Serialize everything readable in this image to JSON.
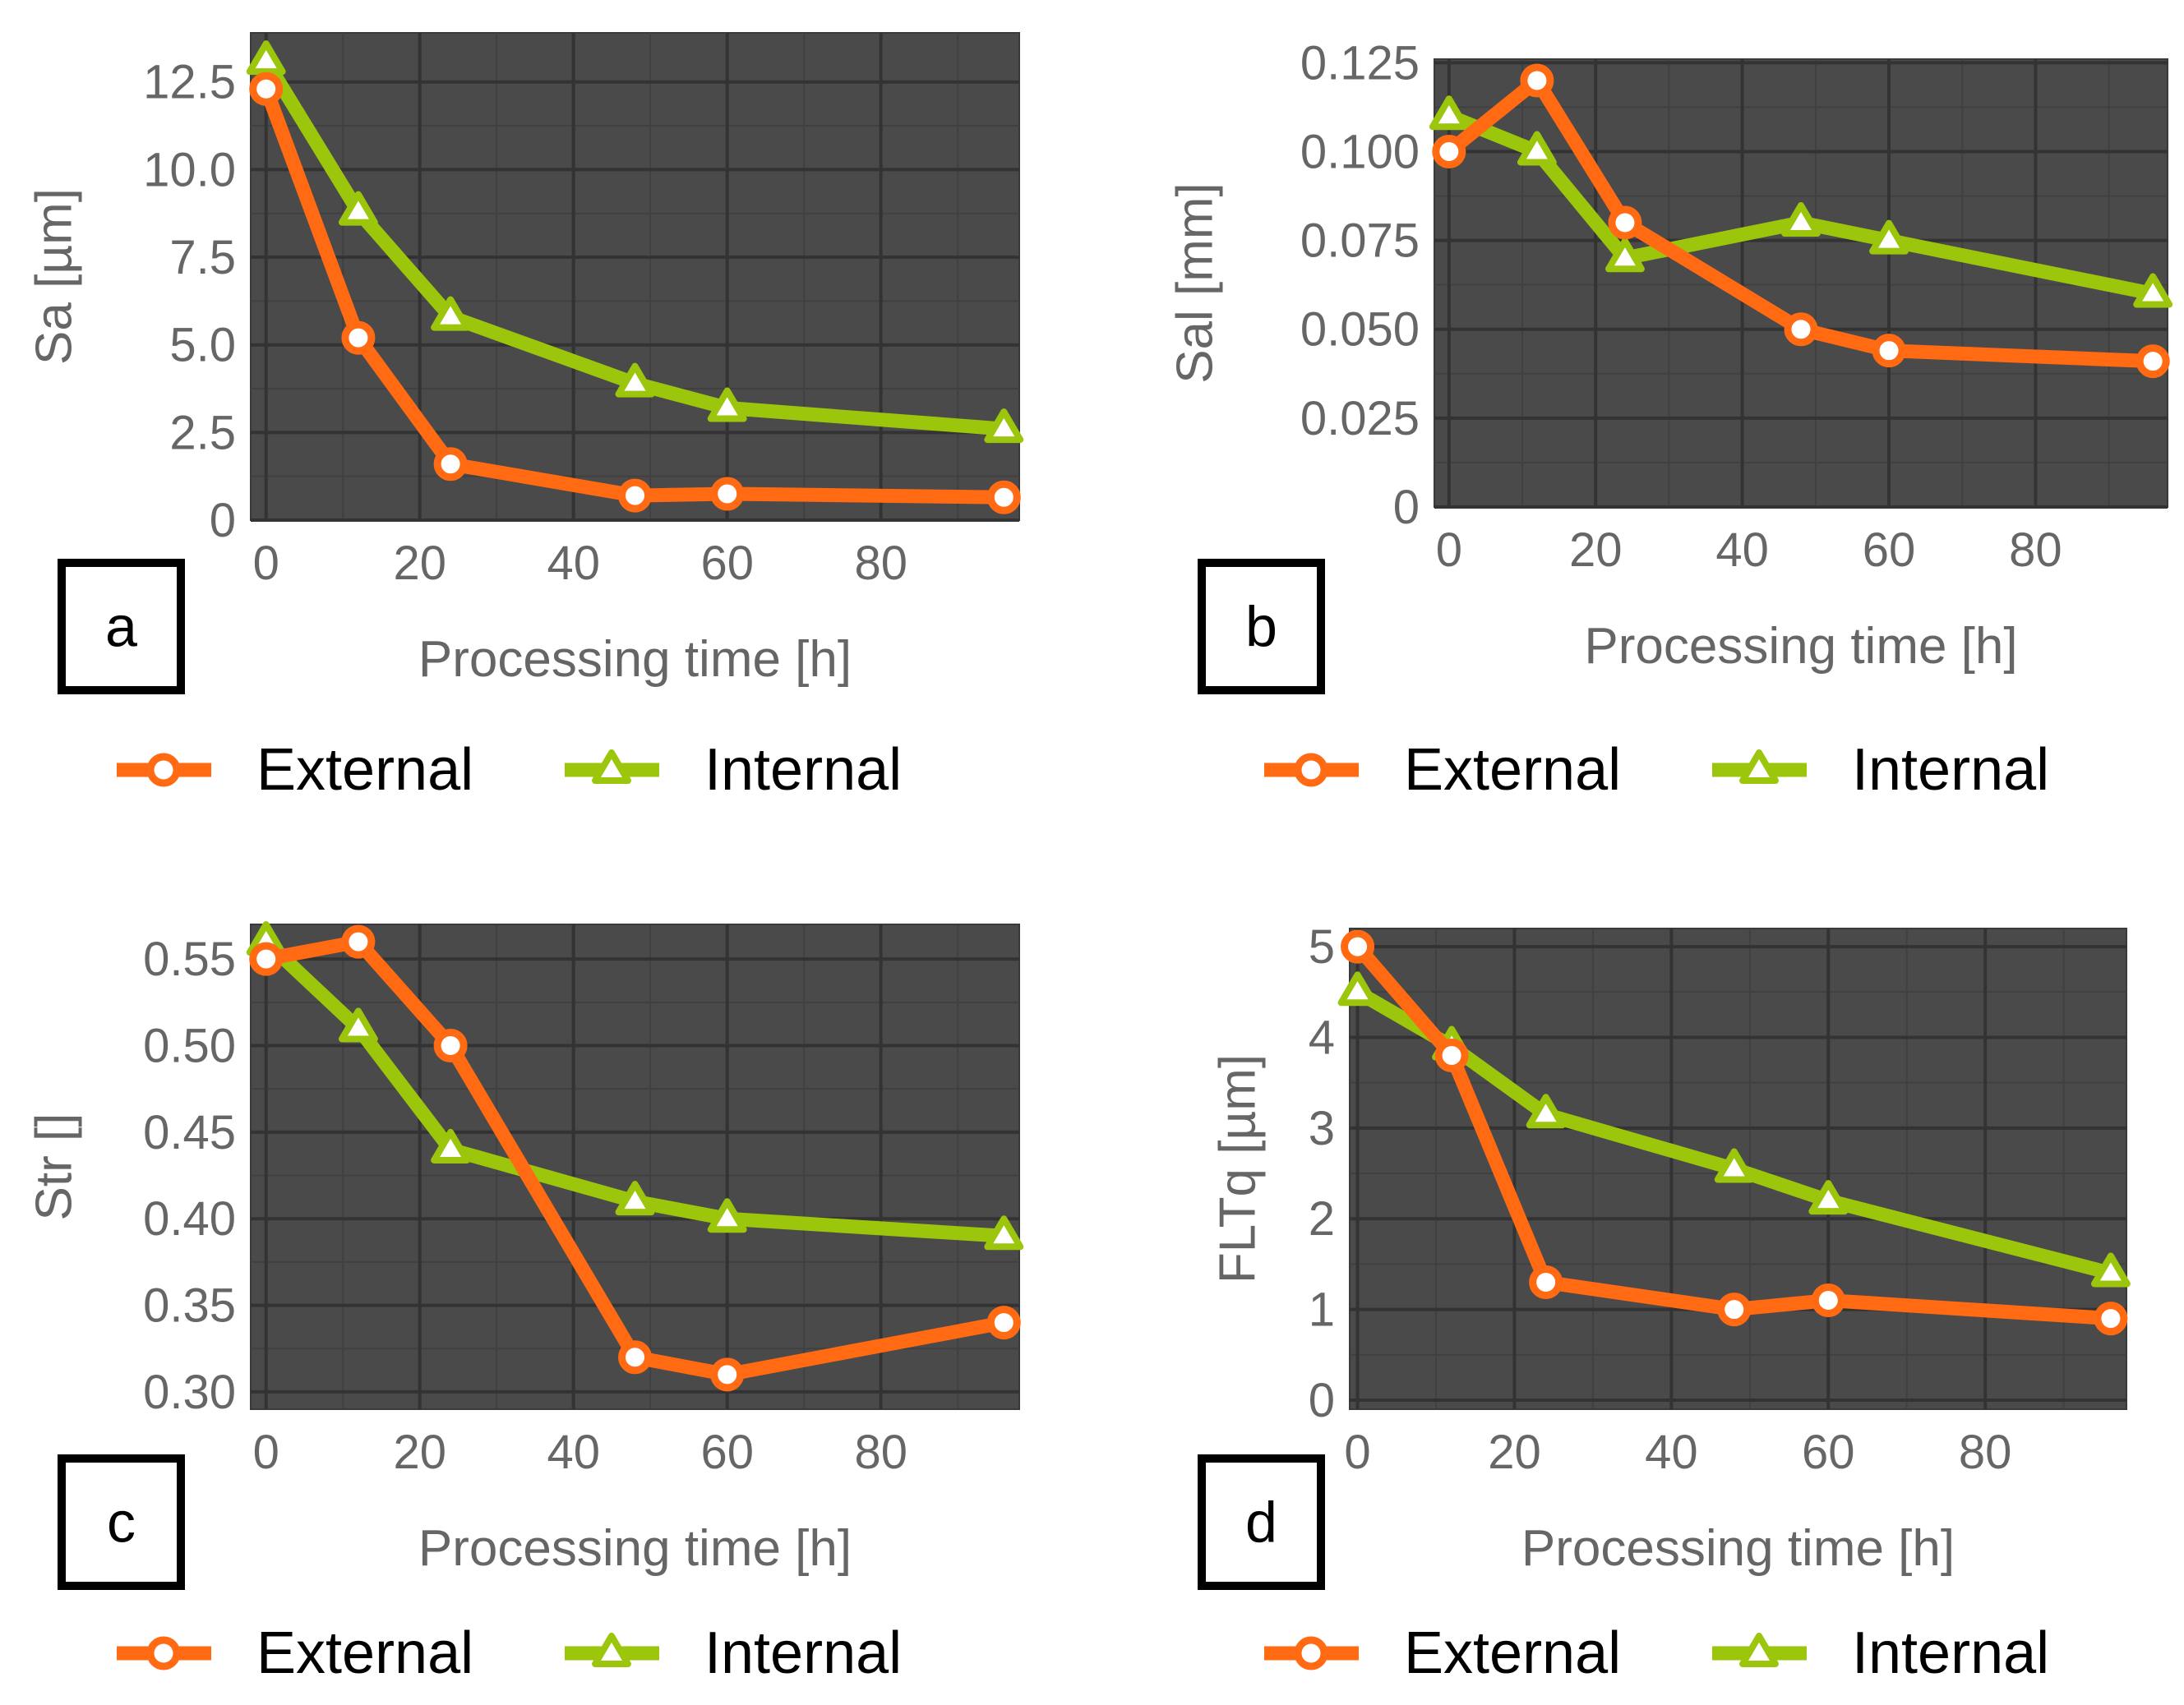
{
  "styles": {
    "plot_background": "#4a4a4a",
    "grid_color": "#333333",
    "text_color": "#666666",
    "legend_text_color": "#000000",
    "external_color": "#ff6a13",
    "internal_color": "#9cc60b"
  },
  "chart_data": [
    {
      "id": "a",
      "type": "line",
      "panel_label": "a",
      "xlabel": "Processing time [h]",
      "ylabel": "Sa [µm]",
      "xlim": [
        -2,
        98
      ],
      "ylim": [
        0,
        13.9
      ],
      "xticks": [
        0,
        20,
        40,
        60,
        80
      ],
      "xtick_labels": [
        "0",
        "20",
        "40",
        "60",
        "80"
      ],
      "yticks": [
        0,
        2.5,
        5.0,
        7.5,
        10.0,
        12.5
      ],
      "ytick_labels": [
        "0",
        "2.5",
        "5.0",
        "7.5",
        "10.0",
        "12.5"
      ],
      "x": [
        0,
        12,
        24,
        48,
        60,
        96
      ],
      "series": [
        {
          "name": "External",
          "marker": "circle",
          "values": [
            12.3,
            5.2,
            1.6,
            0.7,
            0.75,
            0.65
          ]
        },
        {
          "name": "Internal",
          "marker": "triangle",
          "values": [
            13.1,
            8.8,
            5.8,
            3.9,
            3.2,
            2.6
          ]
        }
      ],
      "legend": [
        "External",
        "Internal"
      ]
    },
    {
      "id": "b",
      "type": "line",
      "panel_label": "b",
      "xlabel": "Processing time [h]",
      "ylabel": "Sal [mm]",
      "xlim": [
        -2,
        98
      ],
      "ylim": [
        0,
        0.126
      ],
      "xticks": [
        0,
        20,
        40,
        60,
        80
      ],
      "xtick_labels": [
        "0",
        "20",
        "40",
        "60",
        "80"
      ],
      "yticks": [
        0,
        0.025,
        0.05,
        0.075,
        0.1,
        0.125
      ],
      "ytick_labels": [
        "0",
        "0.025",
        "0.050",
        "0.075",
        "0.100",
        "0.125"
      ],
      "x": [
        0,
        12,
        24,
        48,
        60,
        96
      ],
      "series": [
        {
          "name": "External",
          "marker": "circle",
          "values": [
            0.1,
            0.12,
            0.08,
            0.05,
            0.044,
            0.041
          ]
        },
        {
          "name": "Internal",
          "marker": "triangle",
          "values": [
            0.11,
            0.1,
            0.07,
            0.08,
            0.075,
            0.06
          ]
        }
      ],
      "legend": [
        "External",
        "Internal"
      ]
    },
    {
      "id": "c",
      "type": "line",
      "panel_label": "c",
      "xlabel": "Processing time [h]",
      "ylabel": "Str []",
      "xlim": [
        -2,
        98
      ],
      "ylim": [
        0.29,
        0.57
      ],
      "xticks": [
        0,
        20,
        40,
        60,
        80
      ],
      "xtick_labels": [
        "0",
        "20",
        "40",
        "60",
        "80"
      ],
      "yticks": [
        0.3,
        0.35,
        0.4,
        0.45,
        0.5,
        0.55
      ],
      "ytick_labels": [
        "0.30",
        "0.35",
        "0.40",
        "0.45",
        "0.50",
        "0.55"
      ],
      "x": [
        0,
        12,
        24,
        48,
        60,
        96
      ],
      "series": [
        {
          "name": "External",
          "marker": "circle",
          "values": [
            0.55,
            0.56,
            0.5,
            0.32,
            0.31,
            0.34
          ]
        },
        {
          "name": "Internal",
          "marker": "triangle",
          "values": [
            0.56,
            0.51,
            0.44,
            0.41,
            0.4,
            0.39
          ]
        }
      ],
      "legend": [
        "External",
        "Internal"
      ]
    },
    {
      "id": "d",
      "type": "line",
      "panel_label": "d",
      "xlabel": "Processing time [h]",
      "ylabel": "FLTq [µm]",
      "xlim": [
        -1,
        98
      ],
      "ylim": [
        -0.1,
        5.2
      ],
      "xticks": [
        0,
        20,
        40,
        60,
        80
      ],
      "xtick_labels": [
        "0",
        "20",
        "40",
        "60",
        "80"
      ],
      "yticks": [
        0,
        1,
        2,
        3,
        4,
        5
      ],
      "ytick_labels": [
        "0",
        "1",
        "2",
        "3",
        "4",
        "5"
      ],
      "x": [
        0,
        12,
        24,
        48,
        60,
        96
      ],
      "series": [
        {
          "name": "External",
          "marker": "circle",
          "values": [
            5.0,
            3.8,
            1.3,
            1.0,
            1.1,
            0.9
          ]
        },
        {
          "name": "Internal",
          "marker": "triangle",
          "values": [
            4.5,
            3.9,
            3.15,
            2.55,
            2.2,
            1.4
          ]
        }
      ],
      "legend": [
        "External",
        "Internal"
      ]
    }
  ]
}
